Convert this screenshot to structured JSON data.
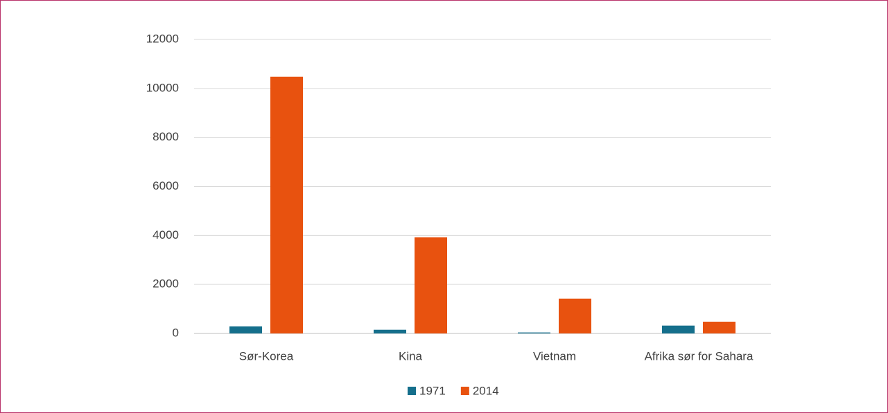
{
  "chart_data": {
    "type": "bar",
    "categories": [
      "Sør-Korea",
      "Kina",
      "Vietnam",
      "Afrika sør for Sahara"
    ],
    "series": [
      {
        "name": "1971",
        "color": "#156f8c",
        "values": [
          290,
          150,
          40,
          320
        ]
      },
      {
        "name": "2014",
        "color": "#e8520f",
        "values": [
          10480,
          3920,
          1420,
          480
        ]
      }
    ],
    "ylim": [
      0,
      12000
    ],
    "yticks": [
      0,
      2000,
      4000,
      6000,
      8000,
      10000,
      12000
    ],
    "grid": true,
    "legend": "bottom"
  }
}
